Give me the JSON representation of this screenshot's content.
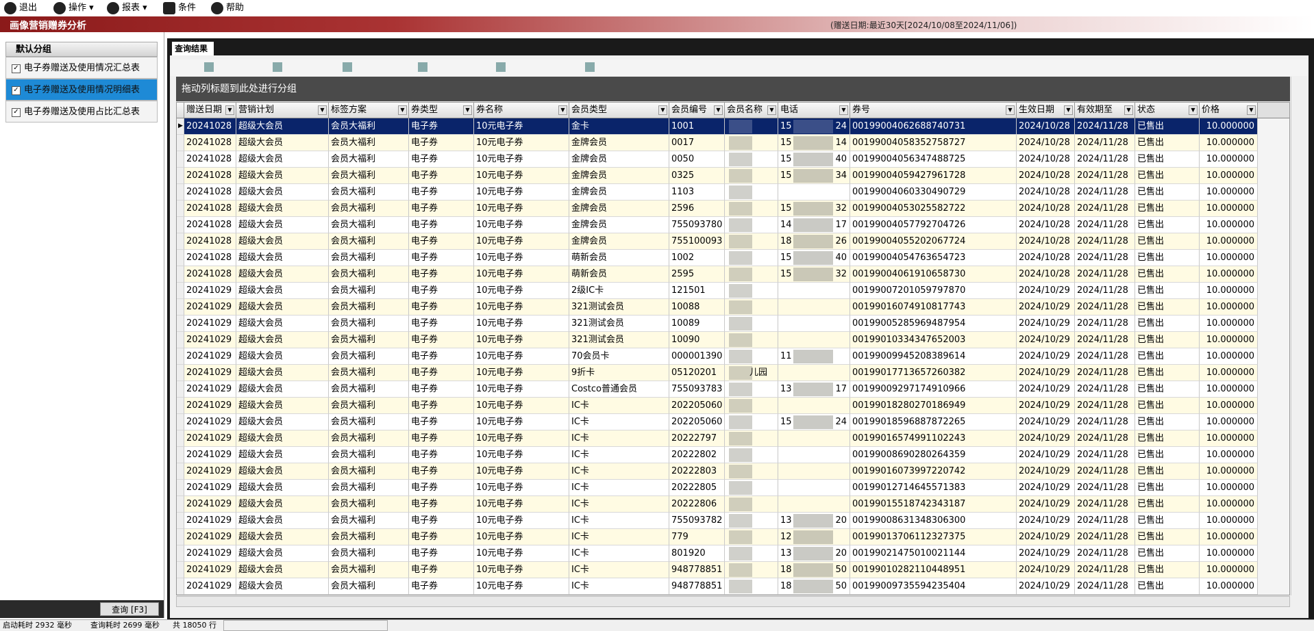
{
  "toolbar": {
    "items": [
      "退出",
      "操作",
      "报表",
      "条件",
      "帮助"
    ]
  },
  "titlebar": {
    "title": "画像营销赠券分析",
    "condition": "(赠送日期:最近30天[2024/10/08至2024/11/06])"
  },
  "sidebar": {
    "group": "默认分组",
    "items": [
      "电子券赠送及使用情况汇总表",
      "电子券赠送及使用情况明细表",
      "电子券赠送及使用占比汇总表"
    ],
    "button": "查询 [F3]"
  },
  "tab": "查询结果",
  "group_panel": "拖动列标题到此处进行分组",
  "table": {
    "columns": [
      "赠送日期",
      "营销计划",
      "标签方案",
      "券类型",
      "券名称",
      "会员类型",
      "会员编号",
      "会员名称",
      "电话",
      "券号",
      "生效日期",
      "有效期至",
      "状态",
      "价格"
    ],
    "rows": [
      [
        "20241028",
        "超级大会员",
        "会员大福利",
        "电子券",
        "10元电子券",
        "金卡",
        "1001",
        null,
        [
          "15",
          "24"
        ],
        "00199004062688740731",
        "2024/10/28",
        "2024/11/28",
        "已售出",
        "10.000000"
      ],
      [
        "20241028",
        "超级大会员",
        "会员大福利",
        "电子券",
        "10元电子券",
        "金牌会员",
        "0017",
        null,
        [
          "15",
          "14"
        ],
        "00199004058352758727",
        "2024/10/28",
        "2024/11/28",
        "已售出",
        "10.000000"
      ],
      [
        "20241028",
        "超级大会员",
        "会员大福利",
        "电子券",
        "10元电子券",
        "金牌会员",
        "0050",
        null,
        [
          "15",
          "40"
        ],
        "00199004056347488725",
        "2024/10/28",
        "2024/11/28",
        "已售出",
        "10.000000"
      ],
      [
        "20241028",
        "超级大会员",
        "会员大福利",
        "电子券",
        "10元电子券",
        "金牌会员",
        "0325",
        null,
        [
          "15",
          "34"
        ],
        "00199004059427961728",
        "2024/10/28",
        "2024/11/28",
        "已售出",
        "10.000000"
      ],
      [
        "20241028",
        "超级大会员",
        "会员大福利",
        "电子券",
        "10元电子券",
        "金牌会员",
        "1103",
        null,
        null,
        "00199004060330490729",
        "2024/10/28",
        "2024/11/28",
        "已售出",
        "10.000000"
      ],
      [
        "20241028",
        "超级大会员",
        "会员大福利",
        "电子券",
        "10元电子券",
        "金牌会员",
        "2596",
        null,
        [
          "15",
          "32"
        ],
        "00199004053025582722",
        "2024/10/28",
        "2024/11/28",
        "已售出",
        "10.000000"
      ],
      [
        "20241028",
        "超级大会员",
        "会员大福利",
        "电子券",
        "10元电子券",
        "金牌会员",
        "755093780",
        null,
        [
          "14",
          "17"
        ],
        "00199004057792704726",
        "2024/10/28",
        "2024/11/28",
        "已售出",
        "10.000000"
      ],
      [
        "20241028",
        "超级大会员",
        "会员大福利",
        "电子券",
        "10元电子券",
        "金牌会员",
        "755100093",
        null,
        [
          "18",
          "26"
        ],
        "00199004055202067724",
        "2024/10/28",
        "2024/11/28",
        "已售出",
        "10.000000"
      ],
      [
        "20241028",
        "超级大会员",
        "会员大福利",
        "电子券",
        "10元电子券",
        "萌新会员",
        "1002",
        null,
        [
          "15",
          "40"
        ],
        "00199004054763654723",
        "2024/10/28",
        "2024/11/28",
        "已售出",
        "10.000000"
      ],
      [
        "20241028",
        "超级大会员",
        "会员大福利",
        "电子券",
        "10元电子券",
        "萌新会员",
        "2595",
        null,
        [
          "15",
          "32"
        ],
        "00199004061910658730",
        "2024/10/28",
        "2024/11/28",
        "已售出",
        "10.000000"
      ],
      [
        "20241029",
        "超级大会员",
        "会员大福利",
        "电子券",
        "10元电子券",
        "2级IC卡",
        "121501",
        null,
        null,
        "00199007201059797870",
        "2024/10/29",
        "2024/11/28",
        "已售出",
        "10.000000"
      ],
      [
        "20241029",
        "超级大会员",
        "会员大福利",
        "电子券",
        "10元电子券",
        "321测试会员",
        "10088",
        null,
        null,
        "00199016074910817743",
        "2024/10/29",
        "2024/11/28",
        "已售出",
        "10.000000"
      ],
      [
        "20241029",
        "超级大会员",
        "会员大福利",
        "电子券",
        "10元电子券",
        "321测试会员",
        "10089",
        null,
        null,
        "00199005285969487954",
        "2024/10/29",
        "2024/11/28",
        "已售出",
        "10.000000"
      ],
      [
        "20241029",
        "超级大会员",
        "会员大福利",
        "电子券",
        "10元电子券",
        "321测试会员",
        "10090",
        null,
        null,
        "00199010334347652003",
        "2024/10/29",
        "2024/11/28",
        "已售出",
        "10.000000"
      ],
      [
        "20241029",
        "超级大会员",
        "会员大福利",
        "电子券",
        "10元电子券",
        "70会员卡",
        "000001390",
        null,
        [
          "11"
        ],
        "00199009945208389614",
        "2024/10/29",
        "2024/11/28",
        "已售出",
        "10.000000"
      ],
      [
        "20241029",
        "超级大会员",
        "会员大福利",
        "电子券",
        "10元电子券",
        "9折卡",
        "05120201",
        "儿园",
        null,
        "00199017713657260382",
        "2024/10/29",
        "2024/11/28",
        "已售出",
        "10.000000"
      ],
      [
        "20241029",
        "超级大会员",
        "会员大福利",
        "电子券",
        "10元电子券",
        "Costco普通会员",
        "755093783",
        null,
        [
          "13",
          "17"
        ],
        "00199009297174910966",
        "2024/10/29",
        "2024/11/28",
        "已售出",
        "10.000000"
      ],
      [
        "20241029",
        "超级大会员",
        "会员大福利",
        "电子券",
        "10元电子券",
        "IC卡",
        "202205060",
        null,
        null,
        "00199018280270186949",
        "2024/10/29",
        "2024/11/28",
        "已售出",
        "10.000000"
      ],
      [
        "20241029",
        "超级大会员",
        "会员大福利",
        "电子券",
        "10元电子券",
        "IC卡",
        "202205060",
        null,
        [
          "15",
          "24"
        ],
        "00199018596887872265",
        "2024/10/29",
        "2024/11/28",
        "已售出",
        "10.000000"
      ],
      [
        "20241029",
        "超级大会员",
        "会员大福利",
        "电子券",
        "10元电子券",
        "IC卡",
        "20222797",
        null,
        null,
        "00199016574991102243",
        "2024/10/29",
        "2024/11/28",
        "已售出",
        "10.000000"
      ],
      [
        "20241029",
        "超级大会员",
        "会员大福利",
        "电子券",
        "10元电子券",
        "IC卡",
        "20222802",
        null,
        null,
        "00199008690280264359",
        "2024/10/29",
        "2024/11/28",
        "已售出",
        "10.000000"
      ],
      [
        "20241029",
        "超级大会员",
        "会员大福利",
        "电子券",
        "10元电子券",
        "IC卡",
        "20222803",
        null,
        null,
        "00199016073997220742",
        "2024/10/29",
        "2024/11/28",
        "已售出",
        "10.000000"
      ],
      [
        "20241029",
        "超级大会员",
        "会员大福利",
        "电子券",
        "10元电子券",
        "IC卡",
        "20222805",
        null,
        null,
        "00199012714645571383",
        "2024/10/29",
        "2024/11/28",
        "已售出",
        "10.000000"
      ],
      [
        "20241029",
        "超级大会员",
        "会员大福利",
        "电子券",
        "10元电子券",
        "IC卡",
        "20222806",
        null,
        null,
        "00199015518742343187",
        "2024/10/29",
        "2024/11/28",
        "已售出",
        "10.000000"
      ],
      [
        "20241029",
        "超级大会员",
        "会员大福利",
        "电子券",
        "10元电子券",
        "IC卡",
        "755093782",
        null,
        [
          "13",
          "20"
        ],
        "00199008631348306300",
        "2024/10/29",
        "2024/11/28",
        "已售出",
        "10.000000"
      ],
      [
        "20241029",
        "超级大会员",
        "会员大福利",
        "电子券",
        "10元电子券",
        "IC卡",
        "779",
        null,
        [
          "12"
        ],
        "00199013706112327375",
        "2024/10/29",
        "2024/11/28",
        "已售出",
        "10.000000"
      ],
      [
        "20241029",
        "超级大会员",
        "会员大福利",
        "电子券",
        "10元电子券",
        "IC卡",
        "801920",
        null,
        [
          "13",
          "20"
        ],
        "00199021475010021144",
        "2024/10/29",
        "2024/11/28",
        "已售出",
        "10.000000"
      ],
      [
        "20241029",
        "超级大会员",
        "会员大福利",
        "电子券",
        "10元电子券",
        "IC卡",
        "948778851",
        null,
        [
          "18",
          "50"
        ],
        "00199010282110448951",
        "2024/10/29",
        "2024/11/28",
        "已售出",
        "10.000000"
      ],
      [
        "20241029",
        "超级大会员",
        "会员大福利",
        "电子券",
        "10元电子券",
        "IC卡",
        "948778851",
        null,
        [
          "18",
          "50"
        ],
        "00199009735594235404",
        "2024/10/29",
        "2024/11/28",
        "已售出",
        "10.000000"
      ]
    ]
  },
  "status": [
    "启动耗时 2932 毫秒",
    "查询耗时 2699 毫秒",
    "共 18050 行"
  ]
}
